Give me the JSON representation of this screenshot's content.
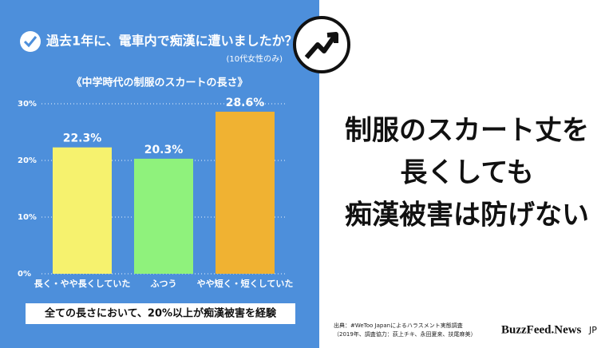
{
  "chart_data": {
    "type": "bar",
    "title": "過去1年に、電車内で痴漢に遭いましたか？",
    "subtitle": "(10代女性のみ)",
    "chart_title": "《中学時代の制服のスカートの長さ》",
    "categories": [
      "長く・やや長くしていた",
      "ふつう",
      "やや短く・短くしていた"
    ],
    "values": [
      22.3,
      20.3,
      28.6
    ],
    "value_labels": [
      "22.3%",
      "20.3%",
      "28.6%"
    ],
    "colors": [
      "#f6f26e",
      "#8ff27c",
      "#f0b232"
    ],
    "ylim": [
      0,
      30
    ],
    "yticks": [
      {
        "value": 0,
        "label": "0%"
      },
      {
        "value": 10,
        "label": "10%"
      },
      {
        "value": 20,
        "label": "20%"
      },
      {
        "value": 30,
        "label": "30%"
      }
    ],
    "grid": true,
    "note": "全ての長さにおいて、20%以上が痴漢被害を経験"
  },
  "headline": [
    "制服のスカート丈を",
    "長くしても",
    "痴漢被害は防げない"
  ],
  "source": [
    "出典：#WeToo Japanによるハラスメント実態調査",
    "（2019年、調査協力：荻上チキ、永田夏来、扶尾麻美）"
  ],
  "brand": [
    "BuzzFeed.News",
    "JP"
  ]
}
